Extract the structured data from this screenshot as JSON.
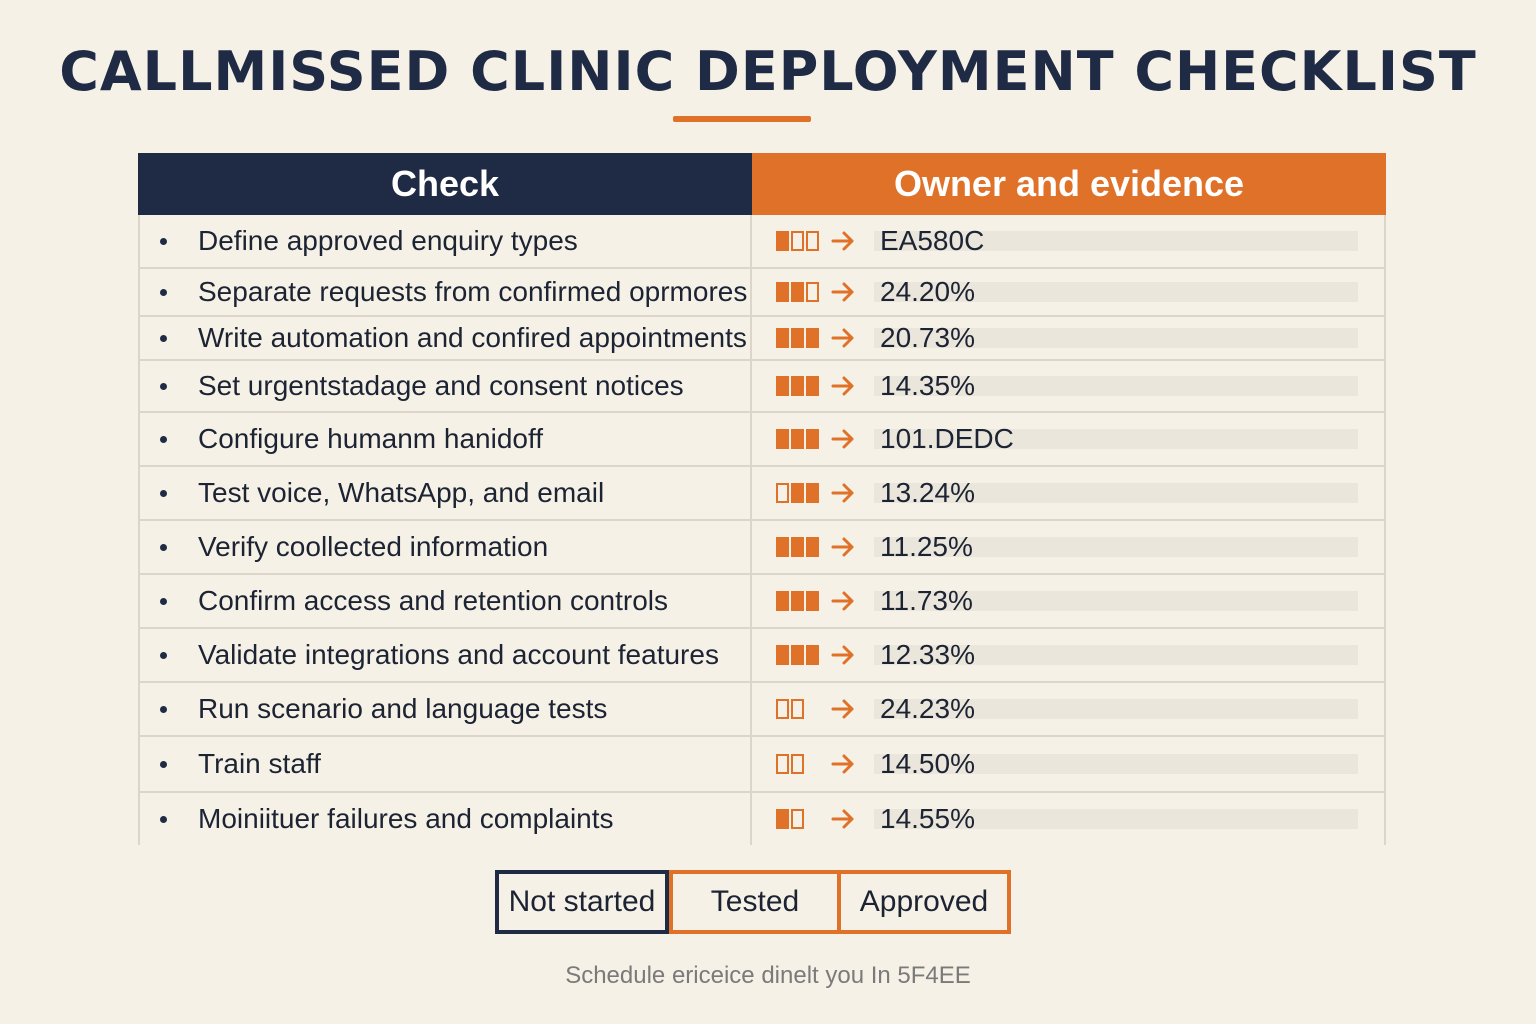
{
  "title": "CALLMISSED CLINIC DEPLOYMENT CHECKLIST",
  "colors": {
    "navy": "#1f2a44",
    "orange": "#e07128",
    "background": "#f6f1e6"
  },
  "table": {
    "headers": {
      "check": "Check",
      "owner": "Owner and evidence"
    },
    "rows": [
      {
        "check": "Define approved enquiry types",
        "value": "EA580C",
        "status": [
          1,
          0,
          0
        ],
        "icon": "arrow-right-icon"
      },
      {
        "check": "Separate requests from confirmed oprmores",
        "value": "24.20%",
        "status": [
          1,
          1,
          0
        ],
        "icon": "arrow-right-icon"
      },
      {
        "check": "Write automation and confired appointments",
        "value": "20.73%",
        "status": [
          1,
          1,
          1
        ],
        "icon": "arrow-right-icon"
      },
      {
        "check": "Set urgentstadage and consent notices",
        "value": "14.35%",
        "status": [
          1,
          1,
          1
        ],
        "icon": "arrow-right-icon"
      },
      {
        "check": "Configure humanm hanidoff",
        "value": "101.DEDC",
        "status": [
          1,
          1,
          1
        ],
        "icon": "arrow-right-icon"
      },
      {
        "check": "Test voice, WhatsApp, and email",
        "value": "13.24%",
        "status": [
          0,
          1,
          1
        ],
        "icon": "arrow-right-icon"
      },
      {
        "check": "Verify coollected information",
        "value": "11.25%",
        "status": [
          1,
          1,
          1
        ],
        "icon": "arrow-right-icon"
      },
      {
        "check": "Confirm access and retention controls",
        "value": "11.73%",
        "status": [
          1,
          1,
          1
        ],
        "icon": "arrow-right-icon"
      },
      {
        "check": "Validate integrations and account features",
        "value": "12.33%",
        "status": [
          1,
          1,
          1
        ],
        "icon": "arrow-right-icon"
      },
      {
        "check": "Run scenario and language tests",
        "value": "24.23%",
        "status": [
          0,
          0
        ],
        "icon": "arrow-right-icon"
      },
      {
        "check": "Train staff",
        "value": "14.50%",
        "status": [
          0,
          0
        ],
        "icon": "arrow-right-icon"
      },
      {
        "check": "Moiniituer failures and complaints",
        "value": "14.55%",
        "status": [
          1,
          0
        ],
        "icon": "arrow-right-icon"
      }
    ]
  },
  "legend": {
    "not_started": "Not started",
    "tested": "Tested",
    "approved": "Approved"
  },
  "footer": "Schedule ericeice dinelt you In 5F4EE"
}
